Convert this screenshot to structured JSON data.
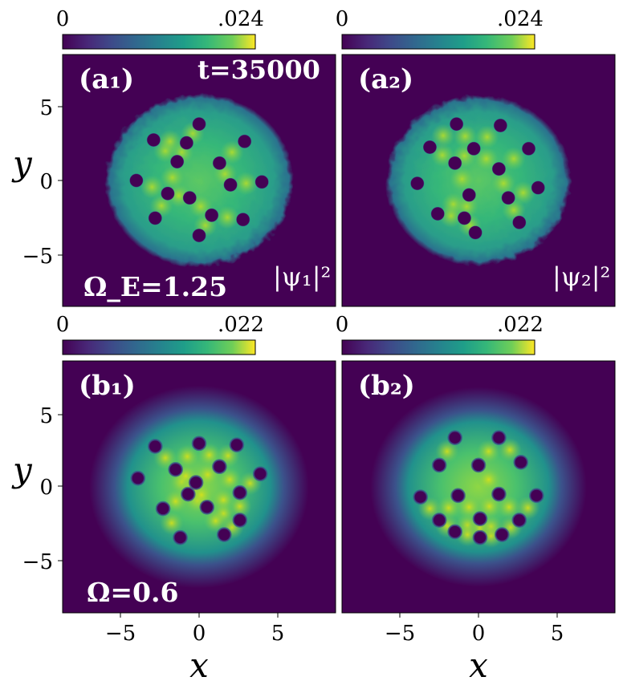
{
  "figure": {
    "colors": {
      "background": "#ffffff",
      "panel_bg": "#440154",
      "text_white": "#ffffff",
      "text_dark": "#000000"
    },
    "colormap_name": "viridis"
  },
  "chart_data": [
    {
      "type": "heatmap",
      "panel_label": "(a₁)",
      "inner_text_top": "t=35000",
      "inner_text_bottom_left": "Ω_E=1.25",
      "inner_text_bottom_right": "|ψ₁|²",
      "colorbar": {
        "min": 0,
        "max": 0.024,
        "tick_labels": [
          "0",
          ".024"
        ]
      },
      "xlim": [
        -8.7,
        8.7
      ],
      "ylim": [
        -8.7,
        8.7
      ],
      "xticks": [
        -5,
        0,
        5
      ],
      "yticks": [
        -5,
        0,
        5
      ],
      "ylabel": "y",
      "xlabel": "",
      "condensate": {
        "center": [
          0,
          0
        ],
        "radius": 5.4,
        "edge_width": 0.6,
        "noisy": true
      },
      "vortices": [
        [
          -4.0,
          0.0
        ],
        [
          -2.9,
          2.8
        ],
        [
          0.0,
          3.9
        ],
        [
          2.9,
          2.7
        ],
        [
          4.0,
          -0.1
        ],
        [
          2.8,
          -2.7
        ],
        [
          0.0,
          -3.8
        ],
        [
          -2.8,
          -2.6
        ],
        [
          -1.4,
          1.3
        ],
        [
          1.3,
          1.2
        ],
        [
          2.0,
          -0.3
        ],
        [
          -2.0,
          -0.9
        ],
        [
          -0.6,
          -1.2
        ],
        [
          0.8,
          -2.4
        ],
        [
          -0.8,
          2.6
        ]
      ]
    },
    {
      "type": "heatmap",
      "panel_label": "(a₂)",
      "inner_text_bottom_right": "|ψ₂|²",
      "colorbar": {
        "min": 0,
        "max": 0.024,
        "tick_labels": [
          "0",
          ".024"
        ]
      },
      "xlim": [
        -8.7,
        8.7
      ],
      "ylim": [
        -8.7,
        8.7
      ],
      "xticks": [
        -5,
        0,
        5
      ],
      "yticks": [
        -5,
        0,
        5
      ],
      "ylabel": "",
      "xlabel": "",
      "condensate": {
        "center": [
          0,
          0
        ],
        "radius": 5.3,
        "edge_width": 0.6,
        "noisy": true
      },
      "vortices": [
        [
          -3.9,
          -0.2
        ],
        [
          -3.1,
          2.3
        ],
        [
          -1.4,
          3.9
        ],
        [
          1.4,
          3.8
        ],
        [
          3.2,
          2.2
        ],
        [
          3.8,
          -0.5
        ],
        [
          2.6,
          -2.9
        ],
        [
          -0.2,
          -3.6
        ],
        [
          -2.6,
          -2.3
        ],
        [
          -1.5,
          1.2
        ],
        [
          -0.3,
          2.2
        ],
        [
          1.3,
          0.8
        ],
        [
          1.9,
          -1.2
        ],
        [
          -0.6,
          -1.0
        ],
        [
          -0.9,
          -2.6
        ]
      ]
    },
    {
      "type": "heatmap",
      "panel_label": "(b₁)",
      "inner_text_bottom_left": "Ω=0.6",
      "colorbar": {
        "min": 0,
        "max": 0.022,
        "tick_labels": [
          "0",
          ".022"
        ]
      },
      "xlim": [
        -8.7,
        8.7
      ],
      "ylim": [
        -8.7,
        8.7
      ],
      "xticks": [
        -5,
        0,
        5
      ],
      "yticks": [
        -5,
        0,
        5
      ],
      "ylabel": "y",
      "xlabel": "x",
      "condensate": {
        "center": [
          0,
          0
        ],
        "radius": 5.4,
        "edge_width": 1.6,
        "noisy": false
      },
      "vortices": [
        [
          -2.8,
          2.8
        ],
        [
          0.0,
          3.0
        ],
        [
          2.4,
          2.9
        ],
        [
          -3.9,
          0.6
        ],
        [
          -1.5,
          1.2
        ],
        [
          1.3,
          1.4
        ],
        [
          3.9,
          0.9
        ],
        [
          -0.7,
          -0.5
        ],
        [
          2.6,
          -0.4
        ],
        [
          -2.3,
          -1.5
        ],
        [
          0.5,
          -1.4
        ],
        [
          2.6,
          -2.3
        ],
        [
          -1.2,
          -3.5
        ],
        [
          1.6,
          -3.3
        ],
        [
          -0.2,
          0.3
        ]
      ]
    },
    {
      "type": "heatmap",
      "panel_label": "(b₂)",
      "colorbar": {
        "min": 0,
        "max": 0.022,
        "tick_labels": [
          "0",
          ".022"
        ]
      },
      "xlim": [
        -8.7,
        8.7
      ],
      "ylim": [
        -8.7,
        8.7
      ],
      "xticks": [
        -5,
        0,
        5
      ],
      "yticks": [
        -5,
        0,
        5
      ],
      "ylabel": "",
      "xlabel": "x",
      "condensate": {
        "center": [
          0,
          0
        ],
        "radius": 5.3,
        "edge_width": 1.6,
        "noisy": false
      },
      "vortices": [
        [
          -1.5,
          3.4
        ],
        [
          1.3,
          3.4
        ],
        [
          -2.5,
          1.5
        ],
        [
          0.0,
          1.5
        ],
        [
          2.7,
          1.7
        ],
        [
          -3.7,
          -0.7
        ],
        [
          -1.3,
          -0.6
        ],
        [
          1.3,
          -0.5
        ],
        [
          3.7,
          -0.6
        ],
        [
          -2.5,
          -2.3
        ],
        [
          0.1,
          -2.2
        ],
        [
          2.6,
          -2.3
        ],
        [
          -1.5,
          -3.1
        ],
        [
          0.1,
          -3.5
        ],
        [
          1.5,
          -3.3
        ]
      ]
    }
  ]
}
